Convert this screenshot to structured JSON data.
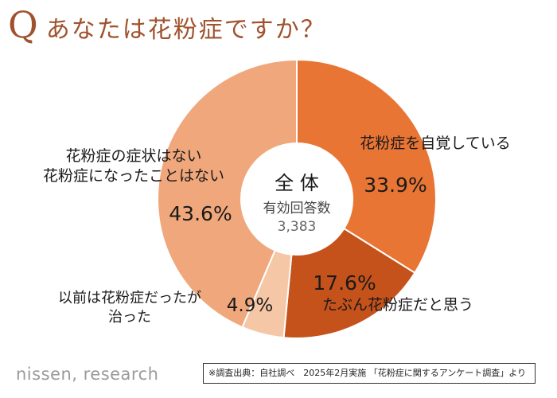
{
  "header": {
    "q_mark": "Q",
    "question": "あなたは花粉症ですか？"
  },
  "chart_data": {
    "type": "pie",
    "variant": "donut",
    "center_label": {
      "line1": "全 体",
      "line2": "有効回答数",
      "line3": "3,383"
    },
    "slices": [
      {
        "label_lines": [
          "花粉症を自覚している"
        ],
        "value": 33.9,
        "display": "33.9%",
        "color": "#E87534"
      },
      {
        "label_lines": [
          "たぶん花粉症だと思う"
        ],
        "value": 17.6,
        "display": "17.6%",
        "color": "#C5521A"
      },
      {
        "label_lines": [
          "以前は花粉症だったが",
          "治った"
        ],
        "value": 4.9,
        "display": "4.9%",
        "color": "#F6C7A6"
      },
      {
        "label_lines": [
          "花粉症の症状はない",
          "花粉症になったことはない"
        ],
        "value": 43.6,
        "display": "43.6%",
        "color": "#F0A77C"
      }
    ]
  },
  "footer": {
    "brand": "nissen, research",
    "source": "※調査出典：自社調べ　2025年2月実施 「花粉症に関するアンケート調査」より"
  }
}
